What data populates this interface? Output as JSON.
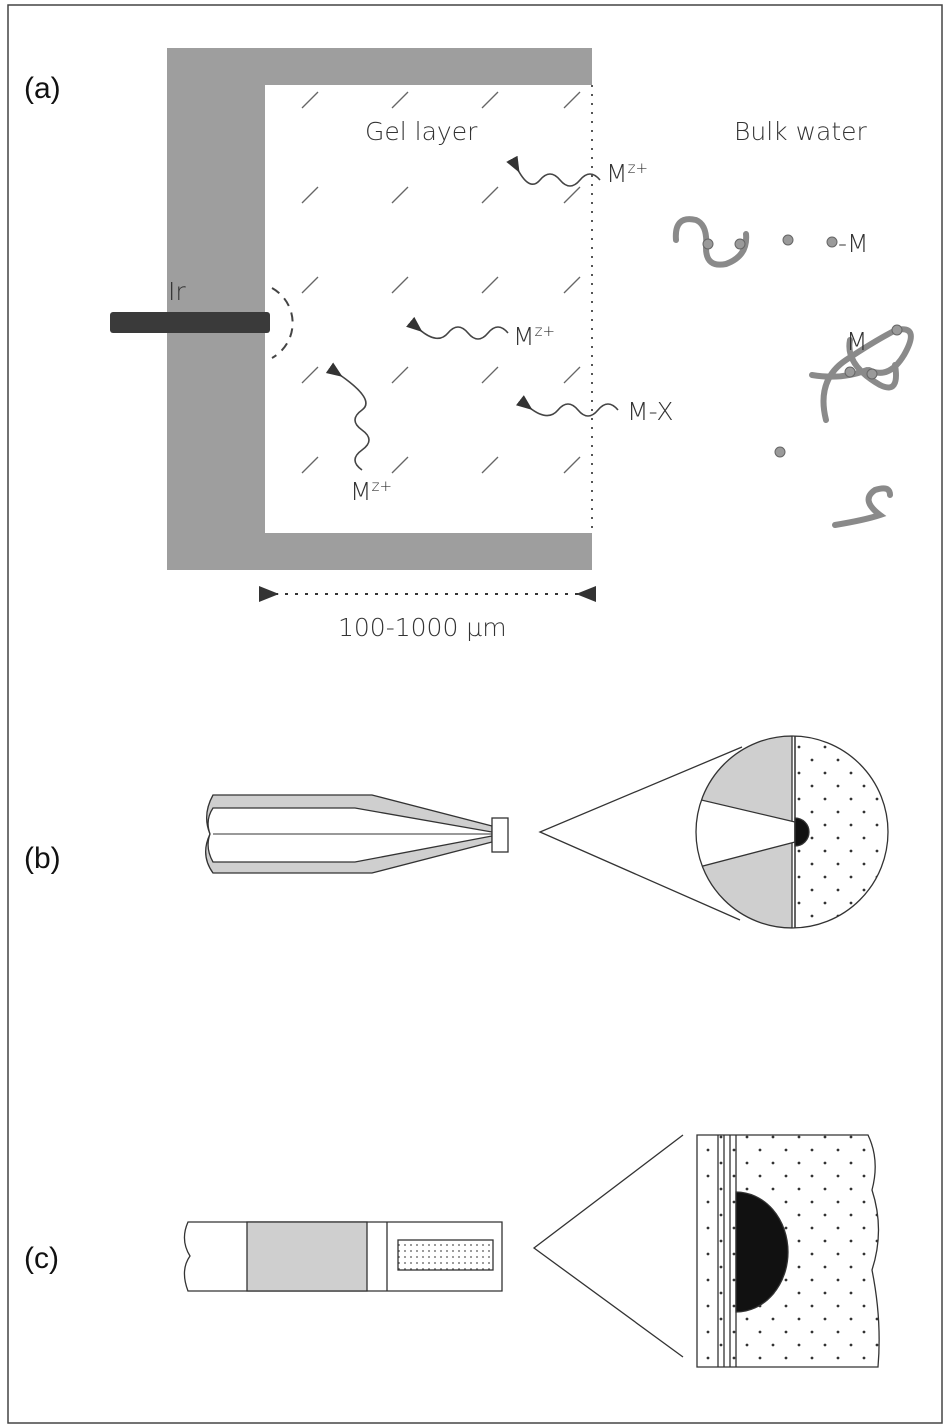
{
  "panels": {
    "a": {
      "label": "(a)",
      "gel_layer": "Gel layer",
      "bulk_water": "Bulk water",
      "electrode": "Ir",
      "ions": [
        {
          "base": "M",
          "sup": "z+"
        },
        {
          "base": "M",
          "sup": "z+"
        },
        {
          "base": "M",
          "sup": "z+"
        }
      ],
      "complex": "M-X",
      "bound_metal": "-M",
      "metal": "M",
      "scale": "100-1000 µm"
    },
    "b": {
      "label": "(b)"
    },
    "c": {
      "label": "(c)"
    }
  }
}
